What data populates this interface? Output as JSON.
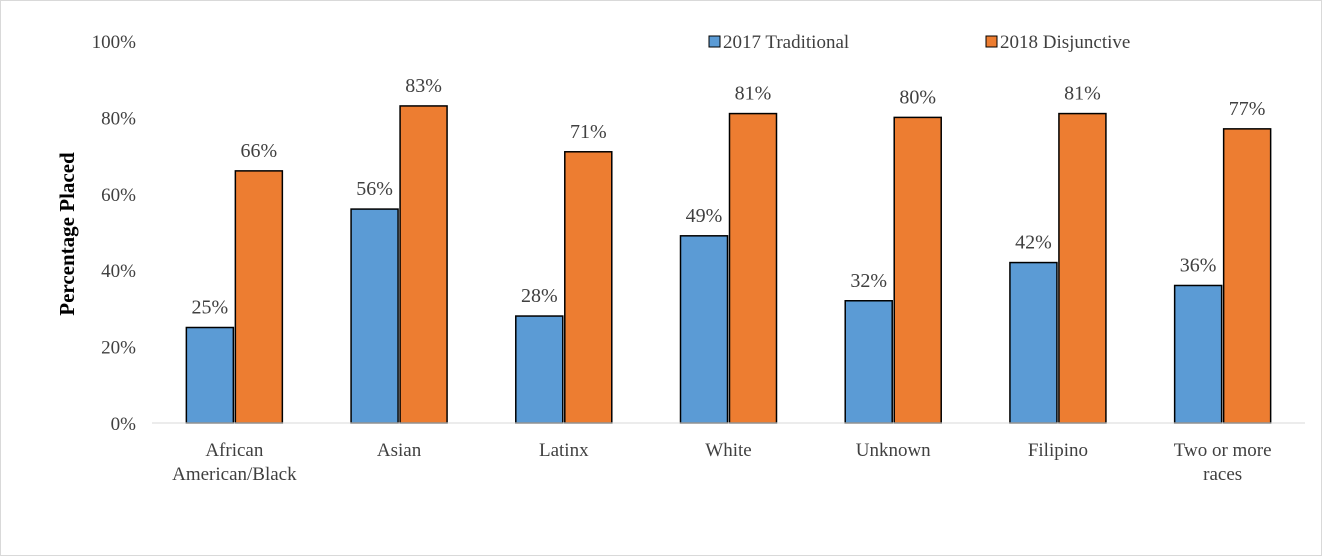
{
  "chart_data": {
    "type": "bar",
    "title": "",
    "xlabel": "",
    "ylabel": "Percentage Placed",
    "ylim": [
      0,
      100
    ],
    "y_ticks": [
      "0%",
      "20%",
      "40%",
      "60%",
      "80%",
      "100%"
    ],
    "grid": false,
    "legend_position": "top-right",
    "categories": [
      [
        "African",
        "American/Black"
      ],
      [
        "Asian"
      ],
      [
        "Latinx"
      ],
      [
        "White"
      ],
      [
        "Unknown"
      ],
      [
        "Filipino"
      ],
      [
        "Two or more",
        "races"
      ]
    ],
    "series": [
      {
        "name": "2017 Traditional",
        "color": "#5b9bd5",
        "values": [
          25,
          56,
          28,
          49,
          32,
          42,
          36
        ],
        "labels": [
          "25%",
          "56%",
          "28%",
          "49%",
          "32%",
          "42%",
          "36%"
        ]
      },
      {
        "name": "2018 Disjunctive",
        "color": "#ed7d31",
        "values": [
          66,
          83,
          71,
          81,
          80,
          81,
          77
        ],
        "labels": [
          "66%",
          "83%",
          "71%",
          "81%",
          "80%",
          "81%",
          "77%"
        ]
      }
    ]
  }
}
